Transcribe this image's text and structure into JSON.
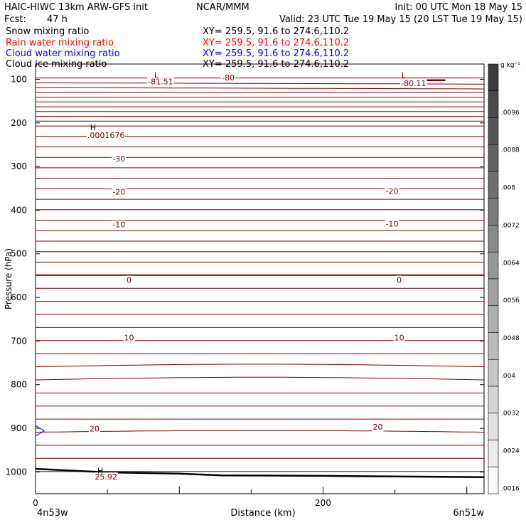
{
  "header": {
    "title_left": "HAIC-HIWC 13km ARW-GFS init",
    "title_center": "NCAR/MMM",
    "init": "Init: 00 UTC Mon 18 May 15",
    "fcst_label": "Fcst:",
    "fcst_value": "47 h",
    "valid": "Valid: 23 UTC Tue 19 May 15 (20 LST Tue 19 May 15)",
    "fields": [
      {
        "label": "Snow mixing ratio",
        "xy": "XY= 259.5, 91.6 to 274.6,110.2",
        "color": "#000000"
      },
      {
        "label": "Rain water mixing ratio",
        "xy": "XY= 259.5, 91.6 to 274.6,110.2",
        "color": "#ff0000"
      },
      {
        "label": "Cloud water mixing ratio",
        "xy": "XY= 259.5, 91.6 to 274.6,110.2",
        "color": "#0000ff"
      },
      {
        "label": "Cloud ice mixing ratio",
        "xy": "XY= 259.5, 91.6 to 274.6,110.2",
        "color": "#000000"
      }
    ]
  },
  "chart_data": {
    "type": "line",
    "xlabel": "Distance (km)",
    "ylabel": "Pressure (hPa)",
    "xlim": [
      0,
      312
    ],
    "ylim": [
      1050,
      65
    ],
    "x_ticks": [
      "0",
      "200"
    ],
    "y_ticks": [
      "100",
      "200",
      "300",
      "400",
      "500",
      "600",
      "700",
      "800",
      "900",
      "1000"
    ],
    "endpoints": {
      "left": "4n53w",
      "right": "6n51w"
    },
    "contour_color": "#800000",
    "contour_labels": [
      {
        "text": "-81.51",
        "x": 87,
        "p": 105
      },
      {
        "text": "-80",
        "x": 134,
        "p": 96
      },
      {
        "text": "-80.11",
        "x": 263,
        "p": 109
      },
      {
        "text": ".0001676",
        "x": 49,
        "p": 228
      },
      {
        "text": "-30",
        "x": 58,
        "p": 282
      },
      {
        "text": "-20",
        "x": 58,
        "p": 358
      },
      {
        "text": "-20",
        "x": 248,
        "p": 356
      },
      {
        "text": "-10",
        "x": 58,
        "p": 433
      },
      {
        "text": "-10",
        "x": 248,
        "p": 431
      },
      {
        "text": "0",
        "x": 65,
        "p": 560
      },
      {
        "text": "0",
        "x": 253,
        "p": 560
      },
      {
        "text": "10",
        "x": 65,
        "p": 692
      },
      {
        "text": "10",
        "x": 253,
        "p": 692
      },
      {
        "text": "20",
        "x": 41,
        "p": 901
      },
      {
        "text": "20",
        "x": 238,
        "p": 897
      },
      {
        "text": "25.92",
        "x": 49,
        "p": 1011
      }
    ],
    "markers": [
      {
        "text": "L",
        "x": 84,
        "p": 90
      },
      {
        "text": "L",
        "x": 256,
        "p": 90
      },
      {
        "text": "H",
        "x": 40,
        "p": 210
      },
      {
        "text": "H",
        "x": 45,
        "p": 997
      }
    ],
    "terrain_p": [
      {
        "x": 0,
        "p": 993
      },
      {
        "x": 50,
        "p": 1001
      },
      {
        "x": 100,
        "p": 1004
      },
      {
        "x": 130,
        "p": 1008
      },
      {
        "x": 200,
        "p": 1009
      },
      {
        "x": 312,
        "p": 1012
      }
    ],
    "colorbar": {
      "units": "g kg⁻¹",
      "ticks": [
        ".0096",
        ".0088",
        ".008",
        ".0072",
        ".0064",
        ".0056",
        ".0048",
        ".004",
        ".0032",
        ".0024",
        ".0016"
      ]
    }
  }
}
